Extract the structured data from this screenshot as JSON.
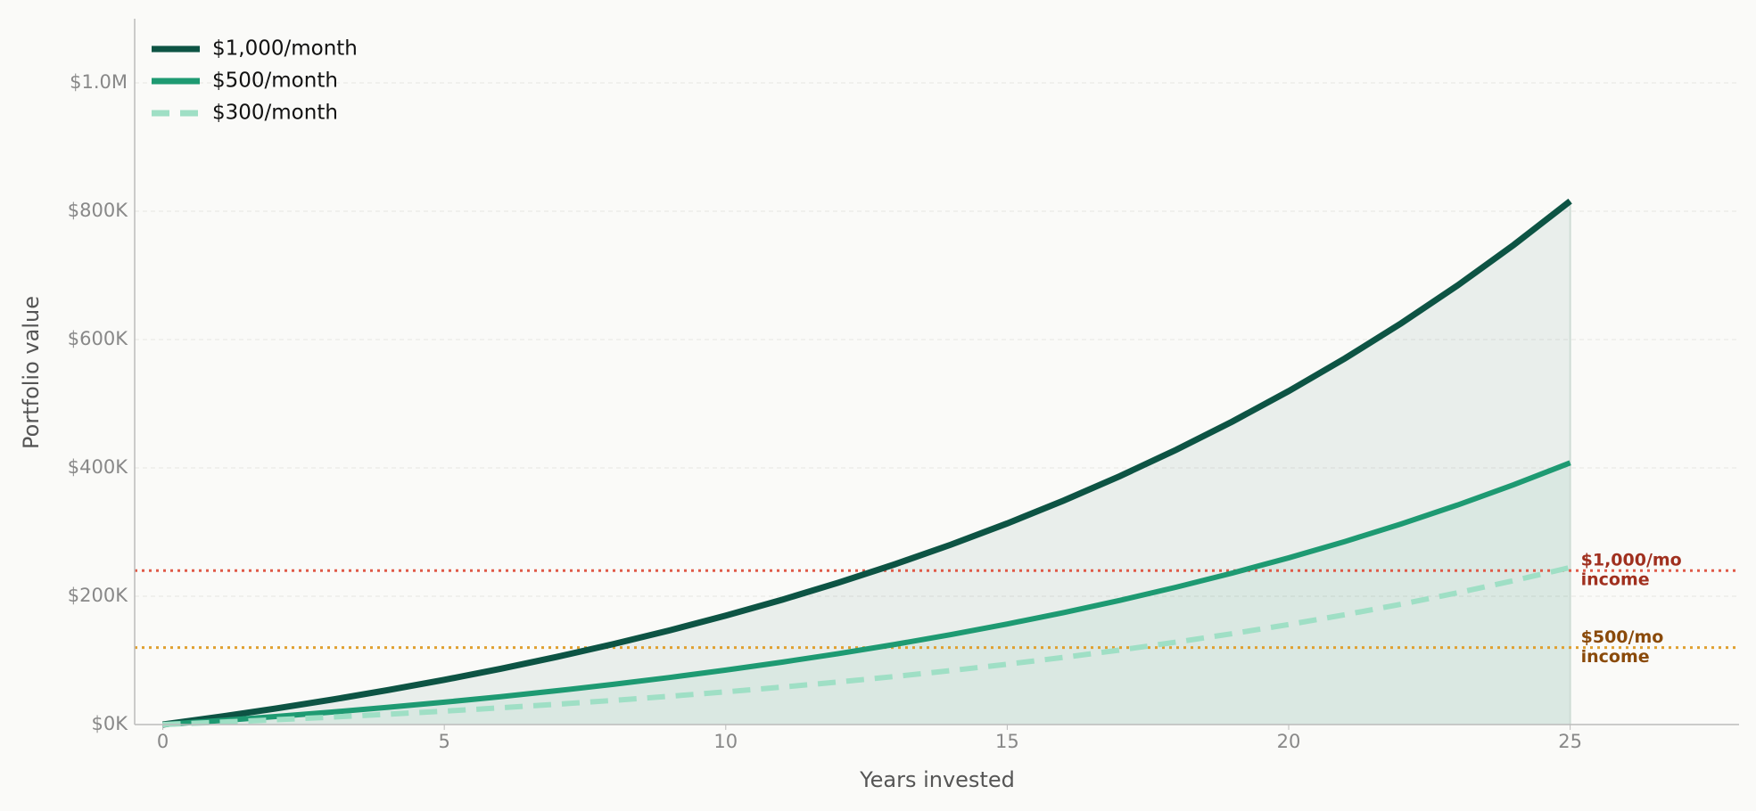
{
  "chart_data": {
    "type": "line",
    "x": [
      0,
      1,
      2,
      3,
      4,
      5,
      6,
      7,
      8,
      9,
      10,
      11,
      12,
      13,
      14,
      15,
      16,
      17,
      18,
      19,
      20,
      21,
      22,
      23,
      24,
      25
    ],
    "series": [
      {
        "name": "$1,000/month",
        "color": "#0d5444",
        "dash": false,
        "fill": true,
        "values": [
          0,
          12000,
          24900,
          38770,
          53680,
          69700,
          86930,
          105440,
          125360,
          146750,
          169760,
          194500,
          221090,
          249660,
          280380,
          313420,
          348930,
          387100,
          428130,
          472240,
          519660,
          570620,
          625420,
          684340,
          747660,
          815730
        ]
      },
      {
        "name": "$500/month",
        "color": "#1e9a72",
        "dash": false,
        "fill": true,
        "values": [
          0,
          6000,
          12450,
          19385,
          26840,
          34850,
          43465,
          52720,
          62680,
          73375,
          84880,
          97250,
          110545,
          124830,
          140190,
          156710,
          174465,
          193550,
          214065,
          236120,
          259830,
          285310,
          312710,
          342170,
          373830,
          407865
        ]
      },
      {
        "name": "$300/month",
        "color": "#9fdfc5",
        "dash": true,
        "fill": false,
        "values": [
          0,
          3600,
          7470,
          11631,
          16104,
          20910,
          26079,
          31632,
          37608,
          44025,
          50928,
          58350,
          66327,
          74898,
          84114,
          94026,
          104679,
          116130,
          128439,
          141672,
          155898,
          171186,
          187626,
          205302,
          224298,
          244719
        ]
      }
    ],
    "references": [
      {
        "value": 240000,
        "color": "#e05a48",
        "text_color": "#a0301f",
        "label": [
          "$1,000/mo",
          "income"
        ]
      },
      {
        "value": 120000,
        "color": "#e0a030",
        "text_color": "#8a4a0a",
        "label": [
          "$500/mo",
          "income"
        ]
      }
    ],
    "xlabel": "Years invested",
    "ylabel": "Portfolio value",
    "xlim": [
      -0.5,
      28
    ],
    "xticks": [
      0,
      5,
      10,
      15,
      20,
      25
    ],
    "ylim": [
      0,
      1100000
    ],
    "yticks": [
      {
        "value": 0,
        "label": "$0K"
      },
      {
        "value": 200000,
        "label": "$200K"
      },
      {
        "value": 400000,
        "label": "$400K"
      },
      {
        "value": 600000,
        "label": "$600K"
      },
      {
        "value": 800000,
        "label": "$800K"
      },
      {
        "value": 1000000,
        "label": "$1.0M"
      }
    ],
    "grid": true,
    "legend": "upper left"
  }
}
